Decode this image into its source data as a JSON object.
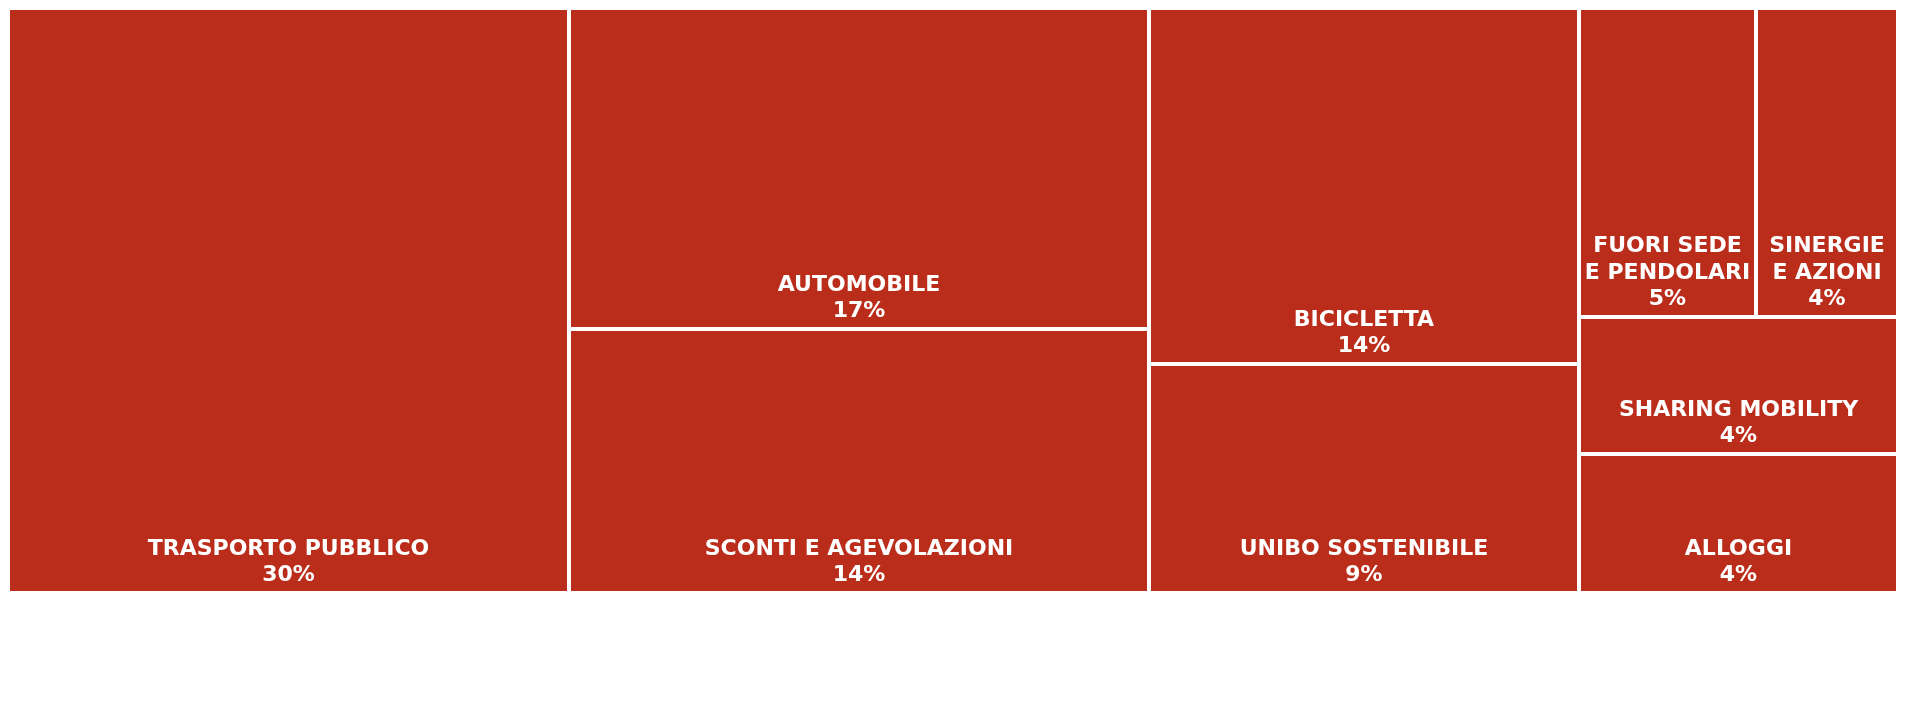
{
  "chart_data": {
    "type": "other",
    "color": "#bb2d1b",
    "categories": [
      "TRASPORTO PUBBLICO",
      "AUTOMOBILE",
      "SCONTI E AGEVOLAZIONI",
      "BICICLETTA",
      "UNIBO SOSTENIBILE",
      "FUORI SEDE E PENDOLARI",
      "SINERGIE E AZIONI",
      "SHARING MOBILITY",
      "ALLOGGI"
    ],
    "values": [
      30,
      17,
      14,
      14,
      9,
      5,
      4,
      4,
      4
    ],
    "value_labels": [
      "30%",
      "17%",
      "14%",
      "14%",
      "9%",
      "5%",
      "4%",
      "4%",
      "4%"
    ]
  }
}
